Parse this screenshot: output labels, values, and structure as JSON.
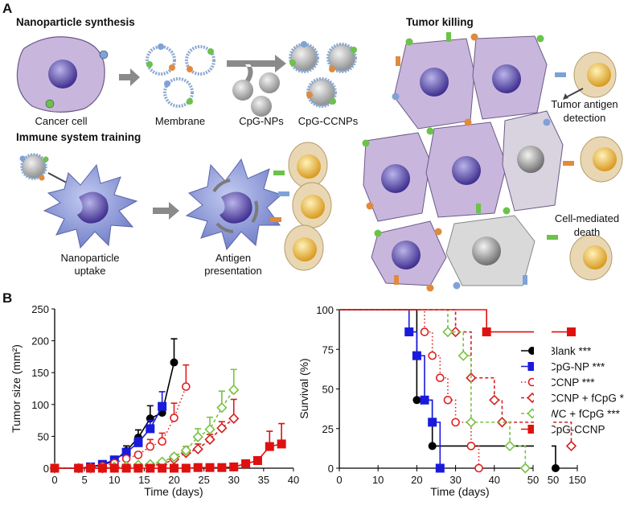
{
  "panel_a": {
    "letter": "A",
    "synthesis_title": "Nanoparticle synthesis",
    "cancer_cell": "Cancer cell",
    "membrane": "Membrane",
    "cpg_nps": "CpG-NPs",
    "cpg_ccnps": "CpG-CCNPs",
    "training_title": "Immune system training",
    "uptake": [
      "Nanoparticle",
      "uptake"
    ],
    "presentation": [
      "Antigen",
      "presentation"
    ],
    "killing_title": "Tumor killing",
    "detection": [
      "Tumor antigen",
      "detection"
    ],
    "death": [
      "Cell-mediated",
      "death"
    ],
    "colors": {
      "cancer_cell": "#c9b6dc",
      "nucleus": "#5a4a9c",
      "dendritic_cell": "#8f9bd6",
      "t_cell": "#e9d7b3",
      "t_cell_nucleus": "#e0b34a",
      "dead_cell": "#d9d9d9",
      "arrow": "#808080"
    }
  },
  "panel_b": {
    "letter": "B"
  },
  "chart_data": [
    {
      "type": "line",
      "xlabel": "Time (days)",
      "ylabel": "Tumor size (mm²)",
      "xlim": [
        0,
        40
      ],
      "ylim": [
        0,
        250
      ],
      "xticks": [
        "0",
        "5",
        "10",
        "15",
        "20",
        "25",
        "30",
        "35",
        "40"
      ],
      "yticks": [
        "0",
        "50",
        "100",
        "150",
        "200",
        "250"
      ],
      "series": [
        {
          "name": "Blank",
          "color": "#000000",
          "marker": "circle-filled",
          "line": "solid",
          "x": [
            0,
            4,
            6,
            8,
            10,
            12,
            14,
            16,
            18,
            20
          ],
          "y": [
            0,
            0,
            2,
            5,
            12,
            27,
            48,
            78,
            87,
            166
          ],
          "err": [
            0,
            0,
            1,
            2,
            3,
            8,
            12,
            20,
            10,
            37
          ]
        },
        {
          "name": "CpG-NP",
          "color": "#1a1adc",
          "marker": "square-filled",
          "line": "solid",
          "x": [
            0,
            4,
            6,
            8,
            10,
            12,
            14,
            16,
            18
          ],
          "y": [
            0,
            0,
            2,
            6,
            13,
            25,
            40,
            62,
            97
          ],
          "err": [
            0,
            0,
            1,
            2,
            3,
            5,
            8,
            13,
            23
          ]
        },
        {
          "name": "CCNP",
          "color": "#e02020",
          "marker": "circle-open",
          "line": "dotted",
          "x": [
            0,
            4,
            6,
            8,
            10,
            12,
            14,
            16,
            18,
            20,
            22
          ],
          "y": [
            0,
            0,
            1,
            3,
            8,
            15,
            21,
            34,
            42,
            79,
            128
          ],
          "err": [
            0,
            0,
            0,
            1,
            2,
            3,
            4,
            11,
            13,
            23,
            34
          ]
        },
        {
          "name": "CCNP + fCpG",
          "color": "#d42020",
          "marker": "diamond-open",
          "line": "dashed",
          "x": [
            0,
            4,
            6,
            8,
            10,
            12,
            14,
            16,
            18,
            20,
            22,
            24,
            26,
            28,
            30
          ],
          "y": [
            0,
            0,
            0,
            0,
            1,
            2,
            3,
            4,
            6,
            14,
            24,
            30,
            45,
            63,
            78
          ],
          "err": [
            0,
            0,
            0,
            0,
            0,
            0,
            1,
            1,
            2,
            3,
            10,
            8,
            8,
            10,
            30
          ]
        },
        {
          "name": "WC + fCpG",
          "color": "#7ac143",
          "marker": "diamond-open",
          "line": "dashed",
          "x": [
            0,
            4,
            6,
            8,
            10,
            12,
            14,
            16,
            18,
            20,
            22,
            24,
            26,
            28,
            30
          ],
          "y": [
            0,
            0,
            0,
            1,
            2,
            3,
            5,
            6,
            10,
            18,
            28,
            49,
            61,
            95,
            123
          ],
          "err": [
            0,
            0,
            0,
            0,
            1,
            1,
            1,
            2,
            3,
            4,
            6,
            13,
            19,
            26,
            32
          ]
        },
        {
          "name": "CpG-CCNP",
          "color": "#e01010",
          "marker": "square-filled",
          "line": "solid",
          "x": [
            0,
            4,
            6,
            8,
            10,
            12,
            14,
            16,
            18,
            20,
            22,
            24,
            26,
            28,
            30,
            32,
            34,
            36,
            38
          ],
          "y": [
            0,
            0,
            0,
            0,
            0,
            0,
            0,
            0,
            0,
            0,
            0,
            1,
            1,
            1,
            2,
            7,
            12,
            34,
            38
          ],
          "err": [
            0,
            0,
            0,
            0,
            0,
            0,
            0,
            0,
            0,
            0,
            0,
            0,
            0,
            0,
            1,
            2,
            6,
            24,
            32
          ]
        }
      ]
    },
    {
      "type": "line",
      "subtype": "kaplan-meier",
      "xlabel": "Time (days)",
      "ylabel": "Survival (%)",
      "xlim": [
        0,
        150
      ],
      "x_axis_break": [
        50,
        50
      ],
      "ylim": [
        0,
        100
      ],
      "xticks": [
        "0",
        "10",
        "20",
        "30",
        "40",
        "50",
        "50",
        "150"
      ],
      "yticks": [
        "0",
        "25",
        "50",
        "75",
        "100"
      ],
      "legend": "right",
      "series": [
        {
          "name": "Blank ***",
          "color": "#000000",
          "marker": "circle-filled",
          "line": "solid",
          "steps": [
            [
              20,
              43
            ],
            [
              24,
              14
            ],
            [
              60,
              0
            ]
          ]
        },
        {
          "name": "CpG-NP ***",
          "color": "#1a1adc",
          "marker": "square-filled",
          "line": "solid",
          "steps": [
            [
              18,
              86
            ],
            [
              20,
              71
            ],
            [
              22,
              43
            ],
            [
              24,
              29
            ],
            [
              26,
              0
            ]
          ]
        },
        {
          "name": "CCNP ***",
          "color": "#e02020",
          "marker": "circle-open",
          "line": "dotted",
          "steps": [
            [
              22,
              86
            ],
            [
              24,
              71
            ],
            [
              26,
              57
            ],
            [
              28,
              43
            ],
            [
              30,
              29
            ],
            [
              34,
              14
            ],
            [
              36,
              0
            ]
          ]
        },
        {
          "name": "CCNP + fCpG *",
          "color": "#d42020",
          "marker": "diamond-open",
          "line": "dashed",
          "steps": [
            [
              30,
              86
            ],
            [
              34,
              57
            ],
            [
              40,
              43
            ],
            [
              42,
              29
            ],
            [
              125,
              14
            ]
          ]
        },
        {
          "name": "WC + fCpG ***",
          "color": "#7ac143",
          "marker": "diamond-open",
          "line": "dashed",
          "steps": [
            [
              28,
              86
            ],
            [
              32,
              71
            ],
            [
              34,
              29
            ],
            [
              44,
              14
            ],
            [
              48,
              0
            ]
          ]
        },
        {
          "name": "CpG-CCNP",
          "color": "#e01010",
          "marker": "square-filled",
          "line": "solid",
          "steps": [
            [
              38,
              86
            ],
            [
              125,
              86
            ]
          ]
        }
      ]
    }
  ]
}
